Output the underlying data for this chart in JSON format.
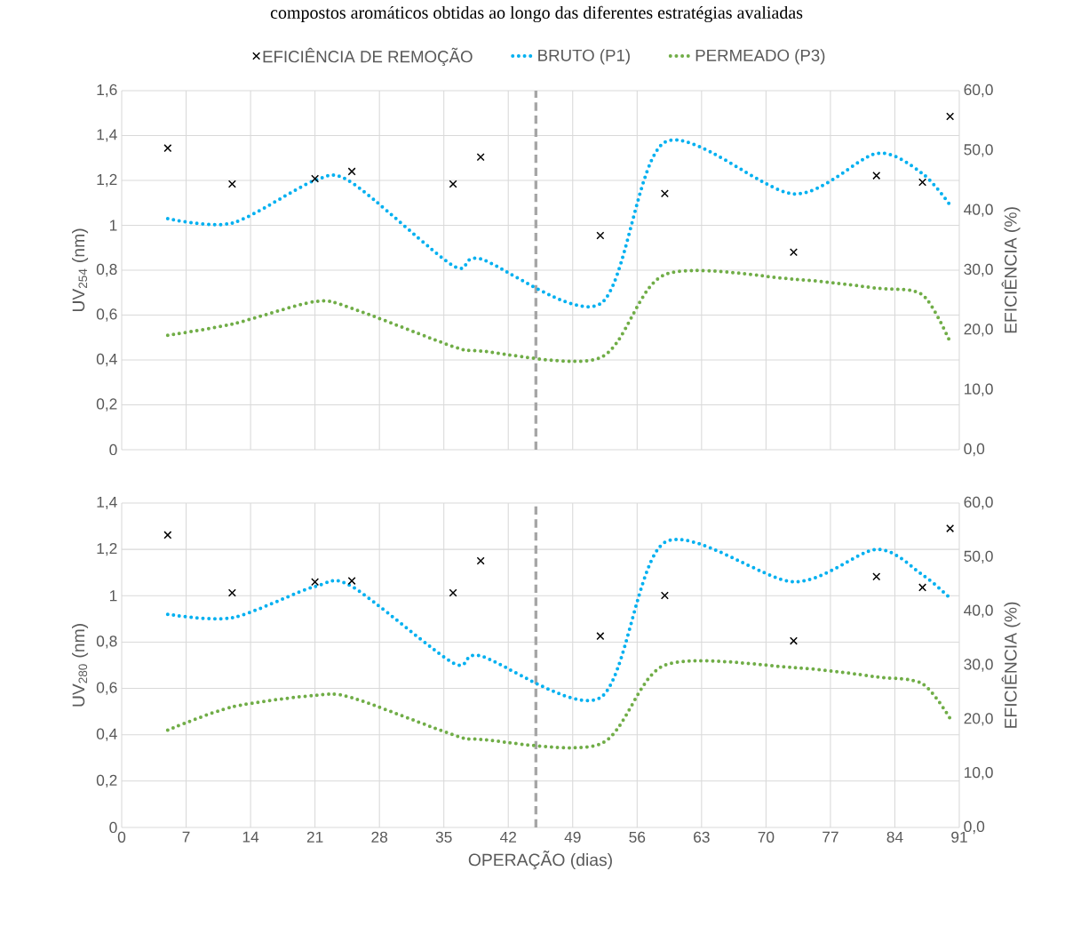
{
  "chart_data": [
    {
      "type": "line",
      "title": "compostos aromáticos obtidas ao longo das diferentes estratégias avaliadas",
      "ylabel": "UV$_{254}$ (nm)",
      "y2label": "EFICIÊNCIA (%)",
      "x": [
        5,
        12,
        21,
        25,
        36,
        39,
        52,
        59,
        73,
        82,
        87,
        90
      ],
      "xlim": [
        0,
        91
      ],
      "xticks": [
        0,
        7,
        14,
        21,
        28,
        35,
        42,
        49,
        56,
        63,
        70,
        77,
        84,
        91
      ],
      "ylim": [
        0,
        1.6
      ],
      "yticks": [
        0,
        {
          "value": 0.2,
          "label": "0,2"
        },
        {
          "value": 0.4,
          "label": "0,4"
        },
        {
          "value": 0.6,
          "label": "0,6"
        },
        {
          "value": 0.8,
          "label": "0,8"
        },
        1,
        {
          "value": 1.2,
          "label": "1,2"
        },
        {
          "value": 1.4,
          "label": "1,4"
        },
        {
          "value": 1.6,
          "label": "1,6"
        }
      ],
      "y2lim": [
        0,
        60
      ],
      "y2ticks": [
        {
          "value": 0,
          "label": "0,0"
        },
        {
          "value": 10,
          "label": "10,0"
        },
        {
          "value": 20,
          "label": "20,0"
        },
        {
          "value": 30,
          "label": "30,0"
        },
        {
          "value": 40,
          "label": "40,0"
        },
        {
          "value": 50,
          "label": "50,0"
        },
        {
          "value": 60,
          "label": "60,0"
        }
      ],
      "grid": true,
      "legend": "top",
      "tick_labels": "y",
      "ref_lines": [
        {
          "axis": "x",
          "value": 45,
          "color": "#a6a6a6",
          "line_style": "dashed"
        }
      ],
      "series": [
        {
          "name": "EFICIÊNCIA DE REMOÇÃO",
          "type": "scatter",
          "axis": "y2",
          "marker": "cross",
          "color": "#000000",
          "values": [
            50.4,
            44.4,
            45.3,
            46.5,
            44.4,
            48.9,
            35.8,
            42.8,
            33.0,
            45.8,
            44.7,
            55.7
          ]
        },
        {
          "name": "BRUTO (P1)",
          "line_style": "dotted",
          "marker": "none",
          "color": "#00b0f0",
          "values": [
            1.03,
            1.01,
            1.2,
            1.19,
            0.82,
            0.85,
            0.65,
            1.37,
            1.14,
            1.32,
            1.23,
            1.09
          ]
        },
        {
          "name": "PERMEADO (P3)",
          "line_style": "dotted",
          "marker": "none",
          "color": "#70ad47",
          "values": [
            0.51,
            0.56,
            0.66,
            0.63,
            0.46,
            0.44,
            0.41,
            0.78,
            0.76,
            0.72,
            0.69,
            0.48
          ]
        }
      ]
    },
    {
      "type": "line",
      "xlabel": "OPERAÇÃO (dias)",
      "ylabel": "UV$_{280}$ (nm)",
      "y2label": "EFICIÊNCIA (%)",
      "x": [
        5,
        12,
        21,
        25,
        36,
        39,
        52,
        59,
        73,
        82,
        87,
        90
      ],
      "xlim": [
        0,
        91
      ],
      "xticks": [
        0,
        7,
        14,
        21,
        28,
        35,
        42,
        49,
        56,
        63,
        70,
        77,
        84,
        91
      ],
      "ylim": [
        0,
        1.4
      ],
      "yticks": [
        0,
        {
          "value": 0.2,
          "label": "0,2"
        },
        {
          "value": 0.4,
          "label": "0,4"
        },
        {
          "value": 0.6,
          "label": "0,6"
        },
        {
          "value": 0.8,
          "label": "0,8"
        },
        1,
        {
          "value": 1.2,
          "label": "1,2"
        },
        {
          "value": 1.4,
          "label": "1,4"
        }
      ],
      "y2lim": [
        0,
        60
      ],
      "y2ticks": [
        {
          "value": 0,
          "label": "0,0"
        },
        {
          "value": 10,
          "label": "10,0"
        },
        {
          "value": 20,
          "label": "20,0"
        },
        {
          "value": 30,
          "label": "30,0"
        },
        {
          "value": 40,
          "label": "40,0"
        },
        {
          "value": 50,
          "label": "50,0"
        },
        {
          "value": 60,
          "label": "60,0"
        }
      ],
      "grid": true,
      "ref_lines": [
        {
          "axis": "x",
          "value": 45,
          "color": "#a6a6a6",
          "line_style": "dashed"
        }
      ],
      "series": [
        {
          "type": "scatter",
          "axis": "y2",
          "marker": "cross",
          "color": "#000000",
          "values": [
            54.1,
            43.4,
            45.4,
            45.6,
            43.4,
            49.3,
            35.4,
            42.9,
            34.5,
            46.4,
            44.4,
            55.3
          ]
        },
        {
          "line_style": "dotted",
          "marker": "none",
          "color": "#00b0f0",
          "values": [
            0.92,
            0.905,
            1.04,
            1.04,
            0.71,
            0.74,
            0.56,
            1.23,
            1.06,
            1.2,
            1.09,
            0.99
          ]
        },
        {
          "line_style": "dotted",
          "marker": "none",
          "color": "#70ad47",
          "values": [
            0.42,
            0.52,
            0.57,
            0.56,
            0.4,
            0.38,
            0.36,
            0.7,
            0.69,
            0.65,
            0.62,
            0.47
          ]
        }
      ]
    }
  ]
}
